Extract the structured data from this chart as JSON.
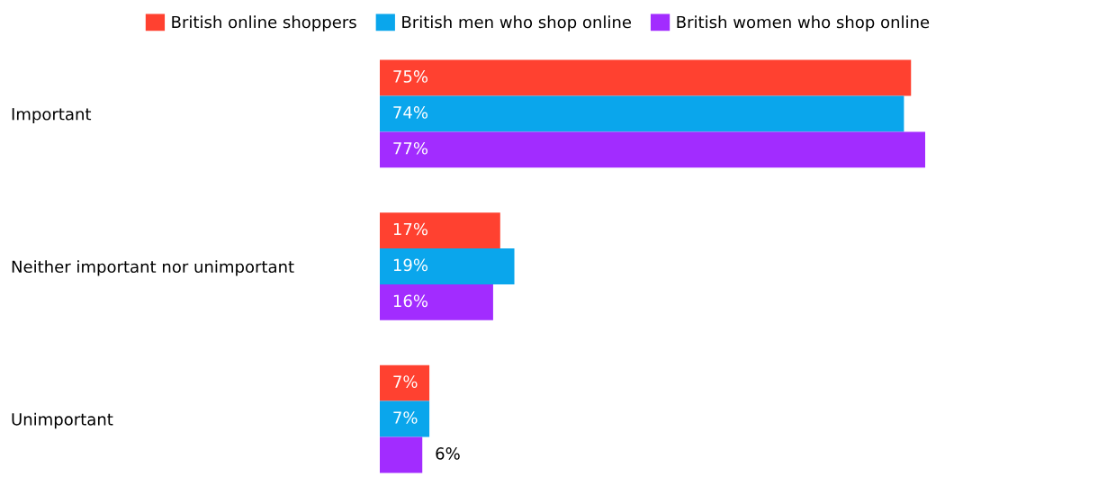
{
  "chart_data": {
    "type": "bar",
    "orientation": "horizontal",
    "categories": [
      "Important",
      "Neither important nor unimportant",
      "Unimportant"
    ],
    "series": [
      {
        "name": "British online shoppers",
        "color": "#ff4130",
        "values": [
          75,
          17,
          7
        ],
        "value_labels": [
          "75%",
          "17%",
          "7%"
        ]
      },
      {
        "name": "British men who shop online",
        "color": "#0aa6ec",
        "values": [
          74,
          19,
          7
        ],
        "value_labels": [
          "74%",
          "19%",
          "7%"
        ]
      },
      {
        "name": "British women who shop online",
        "color": "#a22cff",
        "values": [
          77,
          16,
          6
        ],
        "value_labels": [
          "77%",
          "16%",
          "6%"
        ]
      }
    ],
    "tick_labels": "y",
    "grid": false,
    "legend": "top"
  }
}
